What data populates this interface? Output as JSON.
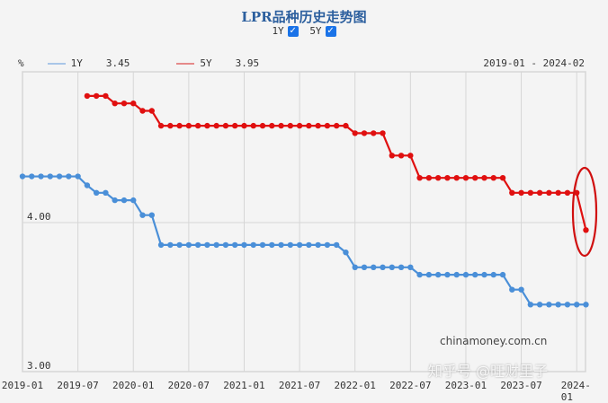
{
  "header": {
    "title": "LPR品种历史走势图",
    "toggles": [
      {
        "label": "1Y",
        "checked": true
      },
      {
        "label": "5Y",
        "checked": true
      }
    ]
  },
  "legend": {
    "unit": "%",
    "items": [
      {
        "label": "1Y",
        "value": "3.45",
        "color": "#4a8fd8"
      },
      {
        "label": "5Y",
        "value": "3.95",
        "color": "#e01010"
      }
    ],
    "range": "2019-01 - 2024-02"
  },
  "watermark": {
    "source": "chinamoney.com.cn",
    "overlay": "知乎号 @旺财里子"
  },
  "chart_data": {
    "type": "line",
    "title": "LPR品种历史走势图",
    "xlabel": "",
    "ylabel": "%",
    "ylim": [
      3.0,
      4.9
    ],
    "yticks": [
      "4.00",
      "3.00"
    ],
    "xticks": [
      "2019-01",
      "2019-07",
      "2020-01",
      "2020-07",
      "2021-01",
      "2021-07",
      "2022-01",
      "2022-07",
      "2023-01",
      "2023-07",
      "2024-01"
    ],
    "grid": true,
    "legend_position": "top-left",
    "annotation": "red ellipse around 2024-02 5Y drop",
    "x": [
      "2019-01",
      "2019-02",
      "2019-03",
      "2019-04",
      "2019-05",
      "2019-06",
      "2019-07",
      "2019-08",
      "2019-09",
      "2019-10",
      "2019-11",
      "2019-12",
      "2020-01",
      "2020-02",
      "2020-03",
      "2020-04",
      "2020-05",
      "2020-06",
      "2020-07",
      "2020-08",
      "2020-09",
      "2020-10",
      "2020-11",
      "2020-12",
      "2021-01",
      "2021-02",
      "2021-03",
      "2021-04",
      "2021-05",
      "2021-06",
      "2021-07",
      "2021-08",
      "2021-09",
      "2021-10",
      "2021-11",
      "2021-12",
      "2022-01",
      "2022-02",
      "2022-03",
      "2022-04",
      "2022-05",
      "2022-06",
      "2022-07",
      "2022-08",
      "2022-09",
      "2022-10",
      "2022-11",
      "2022-12",
      "2023-01",
      "2023-02",
      "2023-03",
      "2023-04",
      "2023-05",
      "2023-06",
      "2023-07",
      "2023-08",
      "2023-09",
      "2023-10",
      "2023-11",
      "2023-12",
      "2024-01",
      "2024-02"
    ],
    "series": [
      {
        "name": "1Y",
        "color": "#4a8fd8",
        "values": [
          4.31,
          4.31,
          4.31,
          4.31,
          4.31,
          4.31,
          4.31,
          4.25,
          4.2,
          4.2,
          4.15,
          4.15,
          4.15,
          4.05,
          4.05,
          3.85,
          3.85,
          3.85,
          3.85,
          3.85,
          3.85,
          3.85,
          3.85,
          3.85,
          3.85,
          3.85,
          3.85,
          3.85,
          3.85,
          3.85,
          3.85,
          3.85,
          3.85,
          3.85,
          3.85,
          3.8,
          3.7,
          3.7,
          3.7,
          3.7,
          3.7,
          3.7,
          3.7,
          3.65,
          3.65,
          3.65,
          3.65,
          3.65,
          3.65,
          3.65,
          3.65,
          3.65,
          3.65,
          3.55,
          3.55,
          3.45,
          3.45,
          3.45,
          3.45,
          3.45,
          3.45,
          3.45
        ]
      },
      {
        "name": "5Y",
        "color": "#e01010",
        "values": [
          null,
          null,
          null,
          null,
          null,
          null,
          null,
          4.85,
          4.85,
          4.85,
          4.8,
          4.8,
          4.8,
          4.75,
          4.75,
          4.65,
          4.65,
          4.65,
          4.65,
          4.65,
          4.65,
          4.65,
          4.65,
          4.65,
          4.65,
          4.65,
          4.65,
          4.65,
          4.65,
          4.65,
          4.65,
          4.65,
          4.65,
          4.65,
          4.65,
          4.65,
          4.6,
          4.6,
          4.6,
          4.6,
          4.45,
          4.45,
          4.45,
          4.3,
          4.3,
          4.3,
          4.3,
          4.3,
          4.3,
          4.3,
          4.3,
          4.3,
          4.3,
          4.2,
          4.2,
          4.2,
          4.2,
          4.2,
          4.2,
          4.2,
          4.2,
          3.95
        ]
      }
    ]
  }
}
